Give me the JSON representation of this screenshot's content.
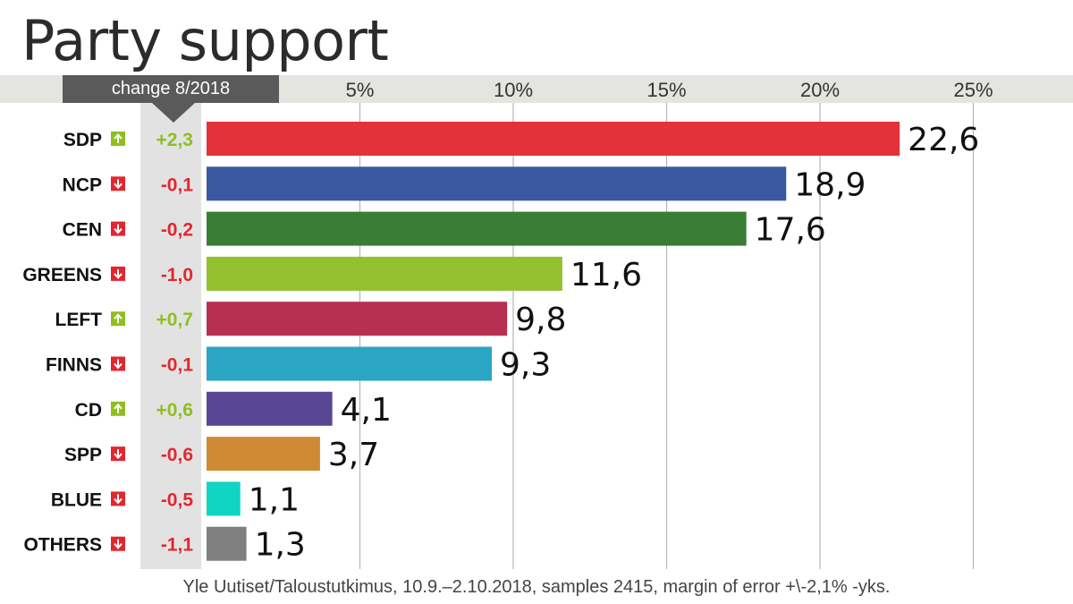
{
  "title": "Party support",
  "change_header": "change 8/2018",
  "footer": "Yle Uutiset/Taloustutkimus, 10.9.–2.10.2018, samples 2415, margin of error +\\-2,1% -yks.",
  "colors": {
    "up": "#8fbf1f",
    "down": "#e3262e",
    "axis_band": "#e4e4e0",
    "change_column": "#e2e2e2",
    "gridline": "#b5b5b5"
  },
  "chart_data": {
    "type": "bar",
    "orientation": "horizontal",
    "title": "Party support",
    "xlim": [
      0,
      25
    ],
    "ticks": [
      5,
      10,
      15,
      20,
      25
    ],
    "tick_labels": [
      "5%",
      "10%",
      "15%",
      "20%",
      "25%"
    ],
    "grid": true,
    "categories": [
      "SDP",
      "NCP",
      "CEN",
      "GREENS",
      "LEFT",
      "FINNS",
      "CD",
      "SPP",
      "BLUE",
      "OTHERS"
    ],
    "values": [
      22.6,
      18.9,
      17.6,
      11.6,
      9.8,
      9.3,
      4.1,
      3.7,
      1.1,
      1.3
    ],
    "value_labels": [
      "22,6",
      "18,9",
      "17,6",
      "11,6",
      "9,8",
      "9,3",
      "4,1",
      "3,7",
      "1,1",
      "1,3"
    ],
    "changes": [
      2.3,
      -0.1,
      -0.2,
      -1.0,
      0.7,
      -0.1,
      0.6,
      -0.6,
      -0.5,
      -1.1
    ],
    "change_labels": [
      "+2,3",
      "-0,1",
      "-0,2",
      "-1,0",
      "+0,7",
      "-0,1",
      "+0,6",
      "-0,6",
      "-0,5",
      "-1,1"
    ],
    "colors": [
      "#e3323a",
      "#3a58a0",
      "#3a7d35",
      "#93c02f",
      "#b8304f",
      "#2aa6c4",
      "#5a4794",
      "#d08a34",
      "#0fd6c2",
      "#808080"
    ]
  }
}
